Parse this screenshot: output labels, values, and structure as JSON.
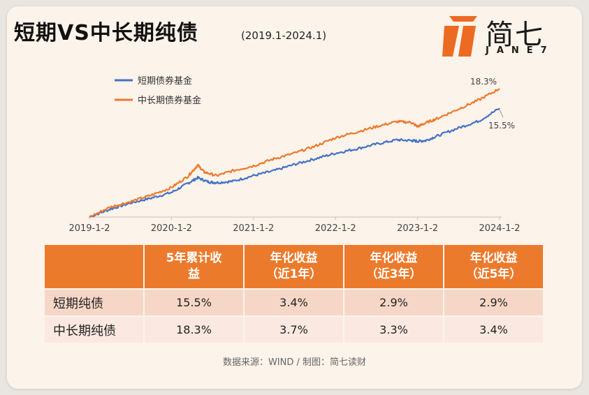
{
  "header": {
    "title": "短期VS中长期纯债",
    "range": "(2019.1-2024.1)"
  },
  "logo": {
    "cn": "简七",
    "en": "JANE7",
    "color": "#ec6b22"
  },
  "chart_data": {
    "type": "line",
    "x_labels": [
      "2019-1-2",
      "2020-1-2",
      "2021-1-2",
      "2022-1-2",
      "2023-1-2",
      "2024-1-2"
    ],
    "x_range": [
      2019.0,
      2024.0
    ],
    "y_range": [
      0,
      18.3
    ],
    "y_unit": "%",
    "legend_position": "top-left",
    "grid": false,
    "series": [
      {
        "name": "短期债券基金",
        "color": "#4472c4",
        "end_label": "15.5%",
        "points": [
          [
            2019.0,
            0
          ],
          [
            2019.25,
            1.1
          ],
          [
            2019.5,
            2.0
          ],
          [
            2019.75,
            2.7
          ],
          [
            2020.0,
            3.5
          ],
          [
            2020.2,
            4.8
          ],
          [
            2020.32,
            5.6
          ],
          [
            2020.45,
            5.0
          ],
          [
            2020.55,
            4.9
          ],
          [
            2020.75,
            5.1
          ],
          [
            2021.0,
            5.9
          ],
          [
            2021.25,
            6.6
          ],
          [
            2021.5,
            7.5
          ],
          [
            2021.75,
            8.3
          ],
          [
            2022.0,
            9.1
          ],
          [
            2022.25,
            9.7
          ],
          [
            2022.5,
            10.4
          ],
          [
            2022.75,
            11.0
          ],
          [
            2022.92,
            10.9
          ],
          [
            2023.0,
            10.8
          ],
          [
            2023.1,
            10.9
          ],
          [
            2023.25,
            11.6
          ],
          [
            2023.5,
            12.7
          ],
          [
            2023.75,
            13.7
          ],
          [
            2024.0,
            15.5
          ]
        ]
      },
      {
        "name": "中长期债券基金",
        "color": "#ec7a2c",
        "end_label": "18.3%",
        "points": [
          [
            2019.0,
            0
          ],
          [
            2019.25,
            1.4
          ],
          [
            2019.5,
            2.2
          ],
          [
            2019.75,
            3.1
          ],
          [
            2020.0,
            4.2
          ],
          [
            2020.2,
            5.8
          ],
          [
            2020.32,
            7.4
          ],
          [
            2020.4,
            6.4
          ],
          [
            2020.55,
            5.9
          ],
          [
            2020.75,
            6.6
          ],
          [
            2021.0,
            7.3
          ],
          [
            2021.25,
            8.3
          ],
          [
            2021.5,
            9.1
          ],
          [
            2021.75,
            10.1
          ],
          [
            2022.0,
            11.3
          ],
          [
            2022.25,
            12.1
          ],
          [
            2022.5,
            12.9
          ],
          [
            2022.75,
            13.6
          ],
          [
            2022.92,
            13.5
          ],
          [
            2023.0,
            12.9
          ],
          [
            2023.1,
            13.4
          ],
          [
            2023.25,
            14.1
          ],
          [
            2023.5,
            15.4
          ],
          [
            2023.75,
            16.7
          ],
          [
            2024.0,
            18.3
          ]
        ]
      }
    ]
  },
  "table": {
    "headers": [
      "",
      "5年累计收益",
      "年化收益（近1年）",
      "年化收益（近3年）",
      "年化收益（近5年）"
    ],
    "header_lines": [
      [
        "",
        ""
      ],
      [
        "5年累计收",
        "益"
      ],
      [
        "年化收益",
        "（近1年）"
      ],
      [
        "年化收益",
        "（近3年）"
      ],
      [
        "年化收益",
        "（近5年）"
      ]
    ],
    "rows": [
      [
        "短期纯债",
        "15.5%",
        "3.4%",
        "2.9%",
        "2.9%"
      ],
      [
        "中长期纯债",
        "18.3%",
        "3.7%",
        "3.3%",
        "3.4%"
      ]
    ]
  },
  "footer": {
    "source": "数据来源：WIND / 制图：简七读财"
  }
}
